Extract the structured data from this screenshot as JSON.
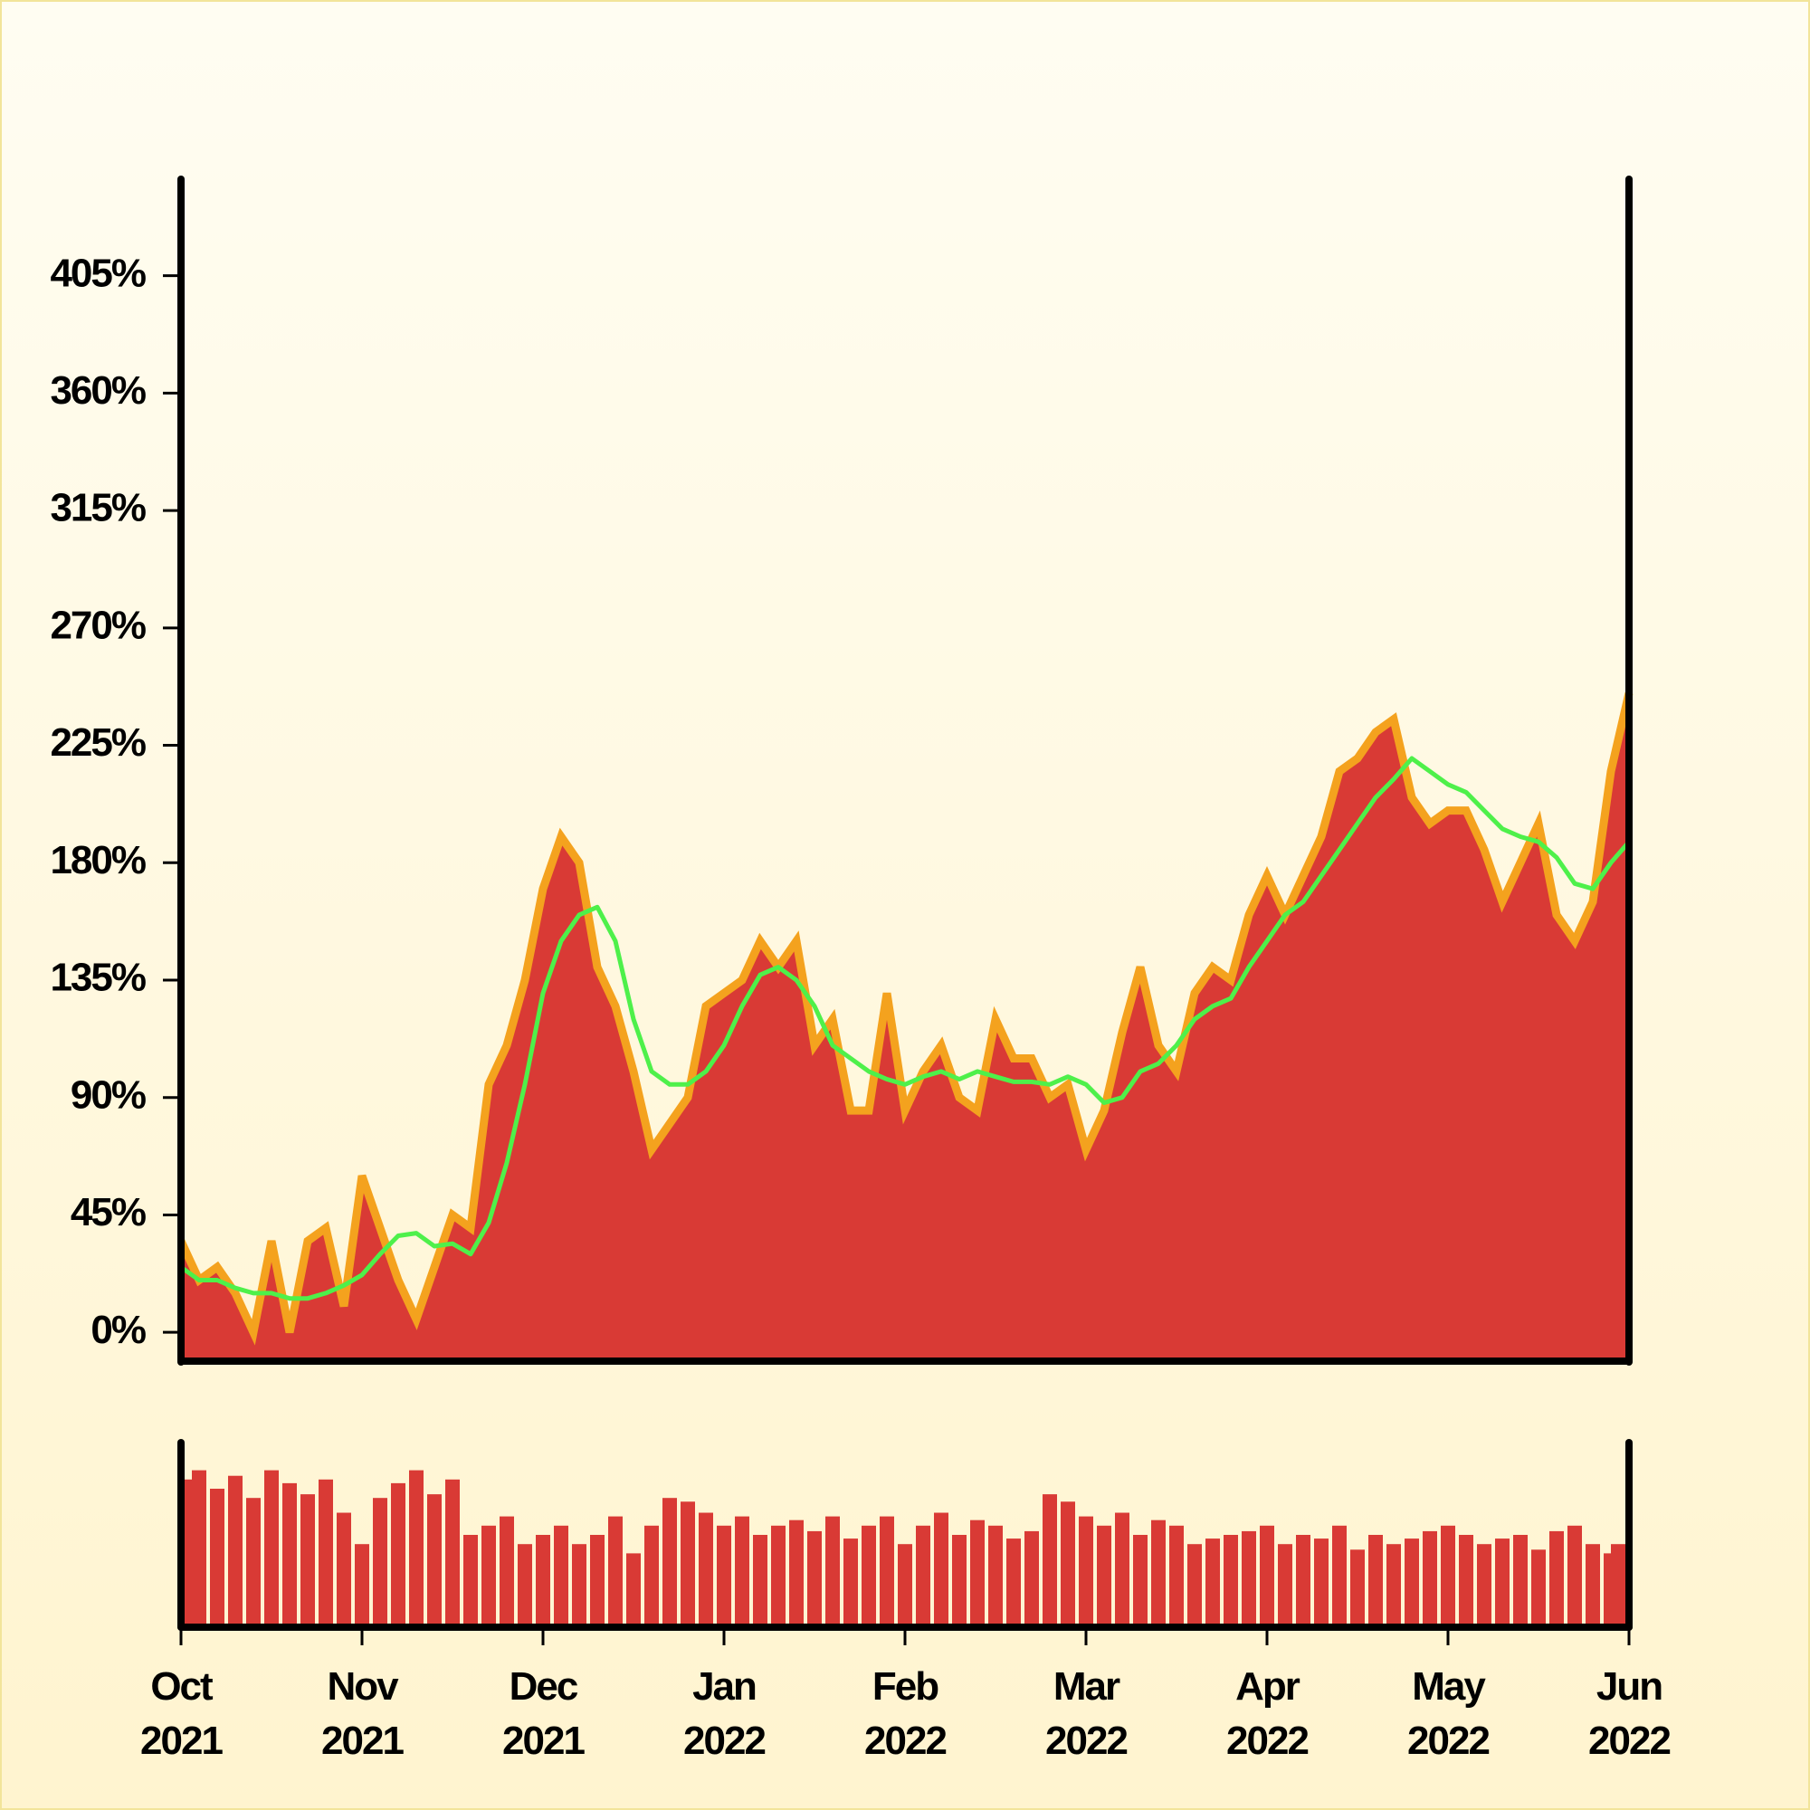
{
  "chart_data": [
    {
      "type": "area",
      "x": [
        0,
        0.1,
        0.2,
        0.3,
        0.4,
        0.5,
        0.6,
        0.7,
        0.8,
        0.9,
        1,
        1.1,
        1.2,
        1.3,
        1.4,
        1.5,
        1.6,
        1.7,
        1.8,
        1.9,
        2,
        2.1,
        2.2,
        2.3,
        2.4,
        2.5,
        2.6,
        2.7,
        2.8,
        2.9,
        3,
        3.1,
        3.2,
        3.3,
        3.4,
        3.5,
        3.6,
        3.7,
        3.8,
        3.9,
        4,
        4.1,
        4.2,
        4.3,
        4.4,
        4.5,
        4.6,
        4.7,
        4.8,
        4.9,
        5,
        5.1,
        5.2,
        5.3,
        5.4,
        5.5,
        5.6,
        5.7,
        5.8,
        5.9,
        6,
        6.1,
        6.2,
        6.3,
        6.4,
        6.5,
        6.6,
        6.7,
        6.8,
        6.9,
        7,
        7.1,
        7.2,
        7.3,
        7.4,
        7.5,
        7.6,
        7.7,
        7.8,
        7.9,
        8
      ],
      "series": [
        {
          "color": "#d93a35",
          "line_color": "#f4a21e",
          "values": [
            35,
            20,
            25,
            15,
            0,
            35,
            0,
            35,
            40,
            10,
            60,
            40,
            20,
            5,
            25,
            45,
            40,
            95,
            110,
            135,
            170,
            190,
            180,
            140,
            125,
            100,
            70,
            80,
            90,
            125,
            130,
            135,
            150,
            140,
            150,
            110,
            120,
            85,
            85,
            130,
            85,
            100,
            110,
            90,
            85,
            120,
            105,
            105,
            90,
            95,
            70,
            85,
            115,
            140,
            110,
            100,
            130,
            140,
            135,
            160,
            175,
            160,
            175,
            190,
            215,
            220,
            230,
            235,
            205,
            195,
            200,
            200,
            185,
            165,
            180,
            195,
            160,
            150,
            165,
            215,
            245
          ]
        },
        {
          "type": "line",
          "color": "#4ef04a",
          "values": [
            25,
            20,
            20,
            17,
            15,
            15,
            13,
            13,
            15,
            18,
            22,
            30,
            37,
            38,
            33,
            34,
            30,
            42,
            65,
            95,
            130,
            150,
            160,
            163,
            150,
            120,
            100,
            95,
            95,
            100,
            110,
            125,
            137,
            140,
            135,
            125,
            110,
            105,
            100,
            97,
            95,
            98,
            100,
            97,
            100,
            98,
            96,
            96,
            95,
            98,
            95,
            88,
            90,
            100,
            103,
            110,
            120,
            125,
            128,
            140,
            150,
            160,
            165,
            175,
            185,
            195,
            205,
            212,
            220,
            215,
            210,
            207,
            200,
            193,
            190,
            188,
            182,
            172,
            170,
            180,
            188
          ]
        }
      ],
      "xlim": [
        0,
        8
      ],
      "ylim": [
        -10,
        442
      ],
      "yticks": [
        {
          "value": 0,
          "label": "0%"
        },
        {
          "value": 45,
          "label": "45%"
        },
        {
          "value": 90,
          "label": "90%"
        },
        {
          "value": 135,
          "label": "135%"
        },
        {
          "value": 180,
          "label": "180%"
        },
        {
          "value": 225,
          "label": "225%"
        },
        {
          "value": 270,
          "label": "270%"
        },
        {
          "value": 315,
          "label": "315%"
        },
        {
          "value": 360,
          "label": "360%"
        },
        {
          "value": 405,
          "label": "405%"
        }
      ]
    },
    {
      "type": "bar",
      "color": "#d93a35",
      "x": [
        0,
        0.1,
        0.2,
        0.3,
        0.4,
        0.5,
        0.6,
        0.7,
        0.8,
        0.9,
        1,
        1.1,
        1.2,
        1.3,
        1.4,
        1.5,
        1.6,
        1.7,
        1.8,
        1.9,
        2,
        2.1,
        2.2,
        2.3,
        2.4,
        2.5,
        2.6,
        2.7,
        2.8,
        2.9,
        3,
        3.1,
        3.2,
        3.3,
        3.4,
        3.5,
        3.6,
        3.7,
        3.8,
        3.9,
        4,
        4.1,
        4.2,
        4.3,
        4.4,
        4.5,
        4.6,
        4.7,
        4.8,
        4.9,
        5,
        5.1,
        5.2,
        5.3,
        5.4,
        5.5,
        5.6,
        5.7,
        5.8,
        5.9,
        6,
        6.1,
        6.2,
        6.3,
        6.4,
        6.5,
        6.6,
        6.7,
        6.8,
        6.9,
        7,
        7.1,
        7.2,
        7.3,
        7.4,
        7.5,
        7.6,
        7.7,
        7.8,
        7.9,
        8
      ],
      "values": [
        80,
        85,
        75,
        82,
        70,
        85,
        78,
        72,
        80,
        62,
        45,
        70,
        78,
        85,
        72,
        80,
        50,
        55,
        60,
        45,
        50,
        55,
        45,
        50,
        60,
        40,
        55,
        70,
        68,
        62,
        55,
        60,
        50,
        55,
        58,
        52,
        60,
        48,
        55,
        60,
        45,
        55,
        62,
        50,
        58,
        55,
        48,
        52,
        72,
        68,
        60,
        55,
        62,
        50,
        58,
        55,
        45,
        48,
        50,
        52,
        55,
        45,
        50,
        48,
        55,
        42,
        50,
        45,
        48,
        52,
        55,
        50,
        45,
        48,
        50,
        42,
        52,
        55,
        45,
        40,
        45
      ],
      "xlim": [
        0,
        8
      ],
      "ylim": [
        0,
        100
      ],
      "xticks": [
        {
          "value": 0,
          "label": "Oct 2021"
        },
        {
          "value": 1,
          "label": "Nov 2021"
        },
        {
          "value": 2,
          "label": "Dec 2021"
        },
        {
          "value": 3,
          "label": "Jan 2022"
        },
        {
          "value": 4,
          "label": "Feb 2022"
        },
        {
          "value": 5,
          "label": "Mar 2022"
        },
        {
          "value": 6,
          "label": "Apr 2022"
        },
        {
          "value": 7,
          "label": "May 2022"
        },
        {
          "value": 8,
          "label": "Jun 2022"
        }
      ]
    }
  ]
}
